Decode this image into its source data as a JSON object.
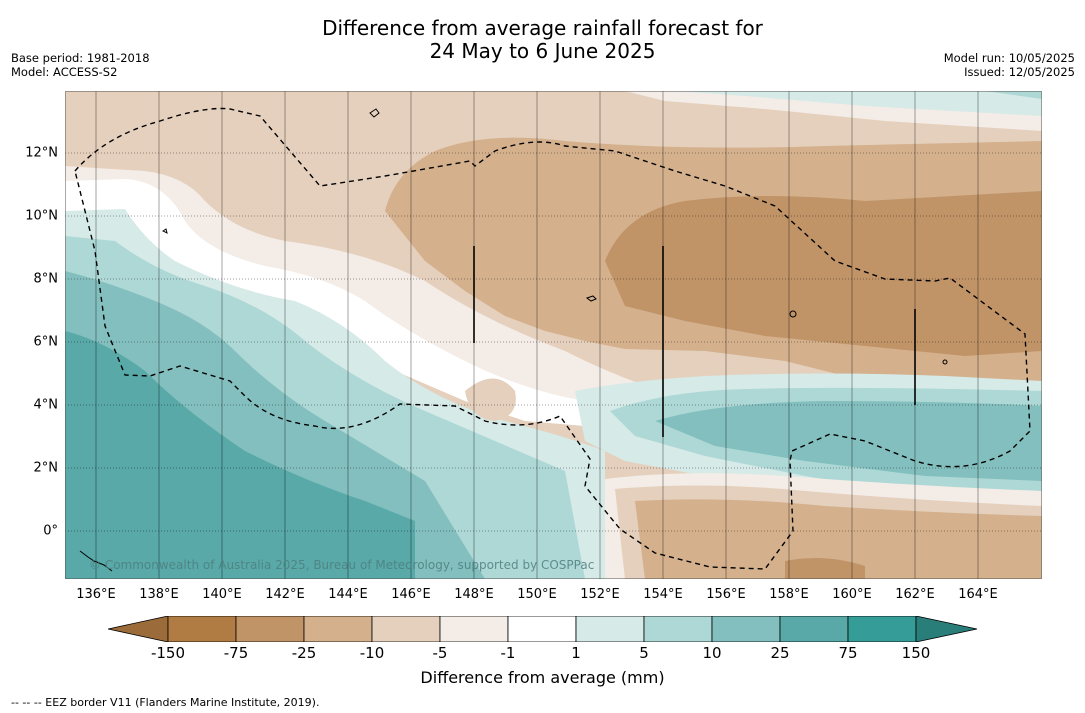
{
  "header": {
    "title_line1": "Difference from average rainfall forecast for",
    "title_line2": "24 May to 6 June 2025",
    "base_period": "Base period: 1981-2018",
    "model": "Model: ACCESS-S2",
    "model_run": "Model run: 10/05/2025",
    "issued": "Issued: 12/05/2025"
  },
  "map": {
    "x_ticks": [
      "136°E",
      "138°E",
      "140°E",
      "142°E",
      "144°E",
      "146°E",
      "148°E",
      "150°E",
      "152°E",
      "154°E",
      "156°E",
      "158°E",
      "160°E",
      "162°E",
      "164°E"
    ],
    "y_ticks": [
      "12°N",
      "10°N",
      "8°N",
      "6°N",
      "4°N",
      "2°N",
      "0°"
    ],
    "lon_range": [
      135,
      166
    ],
    "lat_range": [
      -1.5,
      14
    ],
    "copyright": "© Commonwealth of Australia 2025, Bureau of Meteorology, supported by COSPPac"
  },
  "colorbar": {
    "labels": [
      "-150",
      "-75",
      "-25",
      "-10",
      "-5",
      "-1",
      "1",
      "5",
      "10",
      "25",
      "75",
      "150"
    ],
    "colors": [
      "#9c6b3a",
      "#b07c44",
      "#c19468",
      "#d4b08d",
      "#e5d0bd",
      "#f4ece6",
      "#ffffff",
      "#d6eae8",
      "#aed8d6",
      "#82bfbe",
      "#58a9a8",
      "#359c98",
      "#2a7e7a"
    ],
    "title": "Difference from average (mm)"
  },
  "footnote": "--  --  -- EEZ border V11 (Flanders Marine Institute, 2019)."
}
